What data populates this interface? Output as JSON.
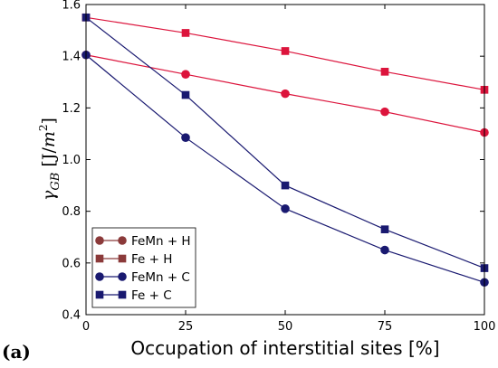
{
  "panel_label": "(a)",
  "chart_data": {
    "type": "line",
    "xlabel": "Occupation of interstitial sites [%]",
    "ylabel": "γGB [J/m²]",
    "ylabel_parts": {
      "gamma": "γ",
      "sub": "GB",
      "open": " [J/",
      "unit": "m",
      "sup": "2",
      "close": "]"
    },
    "xlim": [
      0,
      100
    ],
    "ylim": [
      0.4,
      1.6
    ],
    "xticks": [
      0,
      25,
      50,
      75,
      100
    ],
    "yticks": [
      0.4,
      0.6,
      0.8,
      1.0,
      1.2,
      1.4,
      1.6
    ],
    "xtick_labels": [
      "0",
      "25",
      "50",
      "75",
      "100"
    ],
    "ytick_labels": [
      "0.4",
      "0.6",
      "0.8",
      "1.0",
      "1.2",
      "1.4",
      "1.6"
    ],
    "grid": false,
    "legend_position": "lower-left",
    "x": [
      0,
      25,
      50,
      75,
      100
    ],
    "series": [
      {
        "name": "FeMn + H",
        "marker": "circle",
        "color": "#dc143c",
        "legend_color": "#8b3a3a",
        "values": [
          1.405,
          1.33,
          1.255,
          1.185,
          1.105
        ]
      },
      {
        "name": "Fe + H",
        "marker": "square",
        "color": "#dc143c",
        "legend_color": "#8b3a3a",
        "values": [
          1.55,
          1.49,
          1.42,
          1.34,
          1.27
        ]
      },
      {
        "name": "FeMn + C",
        "marker": "circle",
        "color": "#191970",
        "legend_color": "#191970",
        "values": [
          1.405,
          1.085,
          0.81,
          0.65,
          0.525
        ]
      },
      {
        "name": "Fe + C",
        "marker": "square",
        "color": "#191970",
        "legend_color": "#191970",
        "values": [
          1.55,
          1.25,
          0.9,
          0.73,
          0.58
        ]
      }
    ]
  }
}
